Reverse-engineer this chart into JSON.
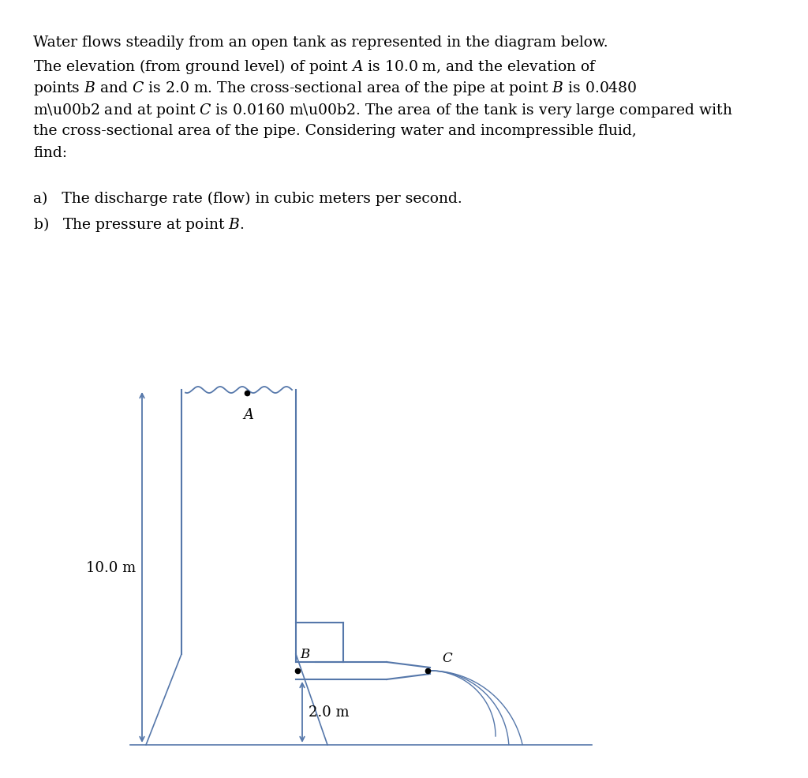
{
  "background_color": "#ffffff",
  "line_color": "#5577aa",
  "text_color": "#000000",
  "label_10m": "10.0 m",
  "label_2m": "2.0 m",
  "label_A": "A",
  "label_B": "B",
  "label_C": "C",
  "para_lines": [
    "Water flows steadily from an open tank as represented in the diagram below.",
    "The elevation (from ground level) of point $A$ is 10.0 m, and the elevation of",
    "points $B$ and $C$ is 2.0 m. The cross-sectional area of the pipe at point $B$ is 0.0480",
    "m\\u00b2 and at point $C$ is 0.0160 m\\u00b2. The area of the tank is very large compared with",
    "the cross-sectional area of the pipe. Considering water and incompressible fluid,",
    "find:"
  ],
  "item_a": "a)   The discharge rate (flow) in cubic meters per second.",
  "item_b": "b)   The pressure at point $B$."
}
